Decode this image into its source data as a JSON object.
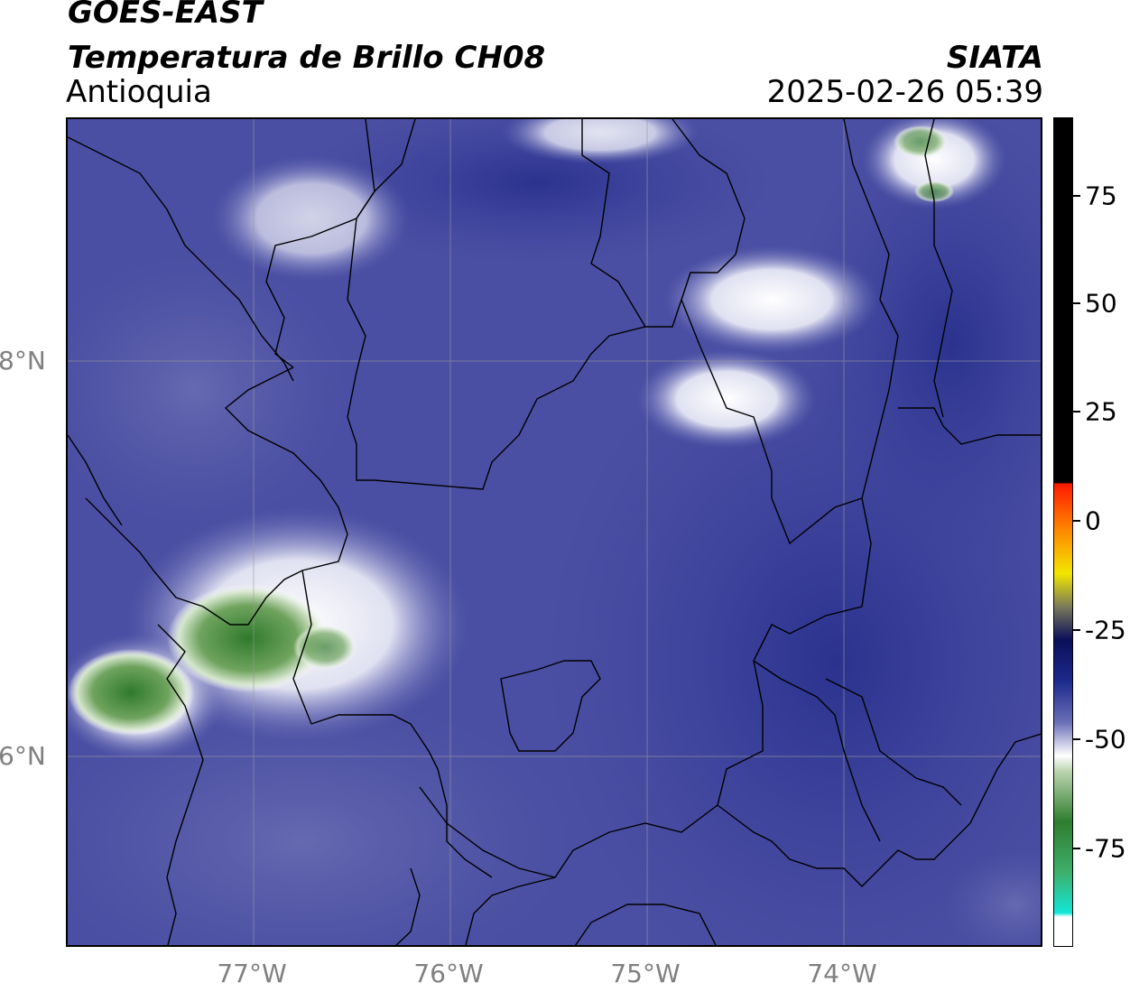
{
  "header": {
    "satellite": "GOES-EAST",
    "product": "Temperatura de Brillo CH08",
    "region": "Antioquia",
    "organization": "SIATA",
    "datetime": "2025-02-26 05:39"
  },
  "map": {
    "lat_labels": [
      "8°N",
      "6°N"
    ],
    "lon_labels": [
      "77°W",
      "76°W",
      "75°W",
      "74°W"
    ]
  },
  "colorbar": {
    "labels": [
      "75",
      "50",
      "25",
      "0",
      "-25",
      "-50",
      "-75"
    ],
    "colors": {
      "cyan": "#13e6d6",
      "green": "#2e7d2e",
      "white": "#ffffff",
      "blue": "#1c2a8c",
      "dark_navy": "#0b0f5a",
      "yellow": "#f2e600",
      "orange": "#ff8c00",
      "red": "#ff1a00",
      "black": "#000000"
    }
  }
}
